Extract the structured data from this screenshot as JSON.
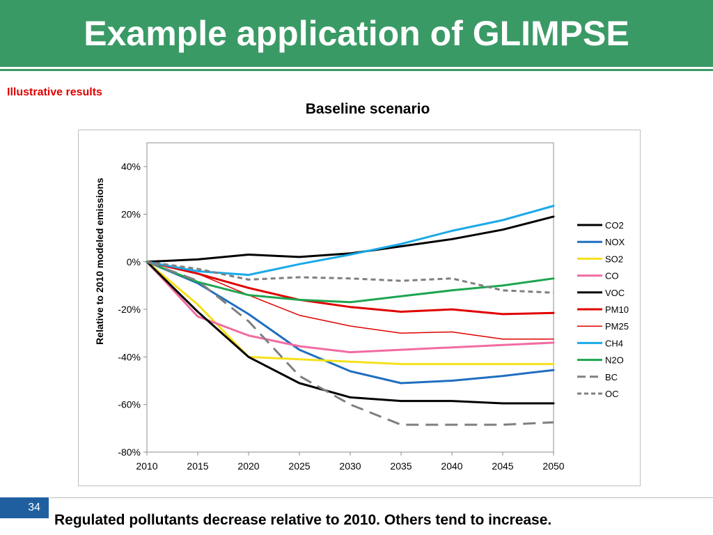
{
  "slide": {
    "title": "Example application of GLIMPSE",
    "subtitle_note": "Illustrative results",
    "page_number": "34",
    "footer": "Regulated pollutants decrease relative to 2010. Others tend to increase."
  },
  "chart_data": {
    "type": "line",
    "title": "Baseline scenario",
    "xlabel": "",
    "ylabel": "Relative to 2010 modeled emissions",
    "x": [
      2010,
      2015,
      2020,
      2025,
      2030,
      2035,
      2040,
      2045,
      2050
    ],
    "x_tick_labels": [
      "2010",
      "2015",
      "2020",
      "2025",
      "2030",
      "2035",
      "2040",
      "2045",
      "2050"
    ],
    "y_tick_labels": [
      "40%",
      "20%",
      "0%",
      "-20%",
      "-40%",
      "-60%",
      "-80%"
    ],
    "y_ticks": [
      40,
      20,
      0,
      -20,
      -40,
      -60,
      -80
    ],
    "ylim": [
      -80,
      50
    ],
    "xlim": [
      2010,
      2050
    ],
    "grid": false,
    "legend_position": "right",
    "series": [
      {
        "name": "CO2",
        "color": "#000000",
        "width": 3,
        "dash": "solid",
        "values": [
          0,
          1,
          3,
          2,
          3.5,
          6.5,
          9.5,
          13.5,
          19
        ]
      },
      {
        "name": "NOX",
        "color": "#1f6ebf",
        "width": 3,
        "dash": "solid",
        "values": [
          0,
          -9,
          -22,
          -37,
          -46,
          -51,
          -50,
          -48,
          -45.5
        ]
      },
      {
        "name": "SO2",
        "color": "#f5e01a",
        "width": 3,
        "dash": "solid",
        "values": [
          0,
          -18,
          -40,
          -41,
          -42,
          -43,
          -43,
          -43,
          -43
        ]
      },
      {
        "name": "CO",
        "color": "#f06ca2",
        "width": 3,
        "dash": "solid",
        "values": [
          0,
          -23,
          -31,
          -35.5,
          -38,
          -37,
          -36,
          -35,
          -34
        ]
      },
      {
        "name": "VOC",
        "color": "#000000",
        "width": 3,
        "dash": "solid",
        "values": [
          0,
          -21,
          -40,
          -51,
          -57,
          -58.5,
          -58.5,
          -59.5,
          -59.5
        ]
      },
      {
        "name": "PM10",
        "color": "#e00000",
        "width": 3,
        "dash": "solid",
        "values": [
          0,
          -5,
          -11,
          -16,
          -19,
          -21,
          -20,
          -22,
          -21.5
        ]
      },
      {
        "name": "PM25",
        "color": "#e00000",
        "width": 1.5,
        "dash": "solid",
        "values": [
          0,
          -5,
          -14,
          -22.5,
          -27,
          -30,
          -29.5,
          -32.5,
          -32.5
        ]
      },
      {
        "name": "CH4",
        "color": "#1aa9e8",
        "width": 3,
        "dash": "solid",
        "values": [
          0,
          -4,
          -5.5,
          -1,
          3,
          7.5,
          13,
          17.5,
          23.5
        ]
      },
      {
        "name": "N2O",
        "color": "#1da550",
        "width": 3,
        "dash": "solid",
        "values": [
          0,
          -8.5,
          -14,
          -16,
          -17,
          -14.5,
          -12,
          -10,
          -7
        ]
      },
      {
        "name": "BC",
        "color": "#7f7f7f",
        "width": 3,
        "dash": "longdash",
        "values": [
          0,
          -8,
          -25,
          -48,
          -60,
          -68.5,
          -68.5,
          -68.5,
          -67.5
        ]
      },
      {
        "name": "OC",
        "color": "#7f7f7f",
        "width": 3,
        "dash": "shortdash",
        "values": [
          0,
          -3,
          -7.5,
          -6.5,
          -7,
          -8,
          -7,
          -12,
          -13
        ]
      }
    ]
  }
}
